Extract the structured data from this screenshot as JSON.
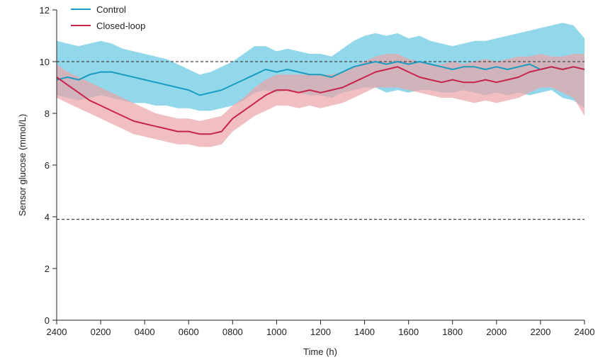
{
  "chart_data": {
    "type": "line",
    "xlabel": "Time (h)",
    "ylabel": "Sensor glucose (mmol/L)",
    "ylim": [
      0,
      12
    ],
    "xlim": [
      0,
      24
    ],
    "y_ticks": [
      0,
      2,
      4,
      6,
      8,
      10,
      12
    ],
    "x_ticks": [
      {
        "value": 0,
        "label": "2400"
      },
      {
        "value": 2,
        "label": "0200"
      },
      {
        "value": 4,
        "label": "0400"
      },
      {
        "value": 6,
        "label": "0600"
      },
      {
        "value": 8,
        "label": "0800"
      },
      {
        "value": 10,
        "label": "1000"
      },
      {
        "value": 12,
        "label": "1200"
      },
      {
        "value": 14,
        "label": "1400"
      },
      {
        "value": 16,
        "label": "1600"
      },
      {
        "value": 18,
        "label": "1800"
      },
      {
        "value": 20,
        "label": "2000"
      },
      {
        "value": 22,
        "label": "2200"
      },
      {
        "value": 24,
        "label": "2400"
      }
    ],
    "reference_lines": [
      10,
      3.9
    ],
    "grid": false,
    "legend_position": "top-left",
    "series": [
      {
        "name": "Control",
        "color": "#1a9cc0",
        "band_color": "#7fd0e6",
        "x": [
          0,
          0.5,
          1,
          1.5,
          2,
          2.5,
          3,
          3.5,
          4,
          4.5,
          5,
          5.5,
          6,
          6.5,
          7,
          7.5,
          8,
          8.5,
          9,
          9.5,
          10,
          10.5,
          11,
          11.5,
          12,
          12.5,
          13,
          13.5,
          14,
          14.5,
          15,
          15.5,
          16,
          16.5,
          17,
          17.5,
          18,
          18.5,
          19,
          19.5,
          20,
          20.5,
          21,
          21.5,
          22,
          22.5,
          23,
          23.5,
          24
        ],
        "values": [
          9.3,
          9.4,
          9.3,
          9.5,
          9.6,
          9.6,
          9.5,
          9.4,
          9.3,
          9.2,
          9.1,
          9.0,
          8.9,
          8.7,
          8.8,
          8.9,
          9.1,
          9.3,
          9.5,
          9.7,
          9.6,
          9.7,
          9.6,
          9.5,
          9.5,
          9.4,
          9.6,
          9.8,
          9.9,
          10.0,
          9.9,
          10.0,
          9.9,
          10.0,
          9.9,
          9.8,
          9.7,
          9.8,
          9.8,
          9.7,
          9.8,
          9.7,
          9.8,
          9.9,
          9.7,
          9.8,
          9.7,
          9.8,
          9.7
        ],
        "upper": [
          10.8,
          10.7,
          10.6,
          10.7,
          10.8,
          10.7,
          10.5,
          10.4,
          10.3,
          10.2,
          10.1,
          9.9,
          9.7,
          9.5,
          9.6,
          9.8,
          10.0,
          10.3,
          10.6,
          10.6,
          10.4,
          10.5,
          10.4,
          10.3,
          10.3,
          10.2,
          10.5,
          10.8,
          11.0,
          11.1,
          11.0,
          11.1,
          10.9,
          11.0,
          10.8,
          10.7,
          10.6,
          10.7,
          10.8,
          10.8,
          10.9,
          11.0,
          11.1,
          11.2,
          11.3,
          11.4,
          11.5,
          11.4,
          10.9
        ],
        "lower": [
          8.7,
          8.6,
          8.5,
          8.6,
          8.7,
          8.6,
          8.5,
          8.4,
          8.4,
          8.3,
          8.3,
          8.2,
          8.2,
          8.1,
          8.1,
          8.2,
          8.3,
          8.5,
          8.8,
          8.9,
          8.8,
          8.9,
          8.8,
          8.7,
          8.7,
          8.6,
          8.8,
          8.9,
          9.0,
          9.0,
          8.8,
          8.9,
          8.8,
          8.9,
          8.9,
          8.8,
          8.8,
          8.9,
          8.8,
          8.7,
          8.8,
          8.7,
          8.8,
          8.7,
          8.8,
          8.9,
          8.6,
          8.5,
          8.2
        ]
      },
      {
        "name": "Closed-loop",
        "color": "#c8244a",
        "band_color": "#eba4a6",
        "x": [
          0,
          0.5,
          1,
          1.5,
          2,
          2.5,
          3,
          3.5,
          4,
          4.5,
          5,
          5.5,
          6,
          6.5,
          7,
          7.5,
          8,
          8.5,
          9,
          9.5,
          10,
          10.5,
          11,
          11.5,
          12,
          12.5,
          13,
          13.5,
          14,
          14.5,
          15,
          15.5,
          16,
          16.5,
          17,
          17.5,
          18,
          18.5,
          19,
          19.5,
          20,
          20.5,
          21,
          21.5,
          22,
          22.5,
          23,
          23.5,
          24
        ],
        "values": [
          9.4,
          9.1,
          8.8,
          8.5,
          8.3,
          8.1,
          7.9,
          7.7,
          7.6,
          7.5,
          7.4,
          7.3,
          7.3,
          7.2,
          7.2,
          7.3,
          7.8,
          8.1,
          8.4,
          8.7,
          8.9,
          8.9,
          8.8,
          8.9,
          8.8,
          8.9,
          9.0,
          9.2,
          9.4,
          9.6,
          9.7,
          9.8,
          9.6,
          9.4,
          9.3,
          9.2,
          9.3,
          9.2,
          9.2,
          9.3,
          9.2,
          9.3,
          9.4,
          9.6,
          9.7,
          9.8,
          9.7,
          9.8,
          9.7
        ],
        "upper": [
          9.9,
          9.6,
          9.4,
          9.2,
          9.0,
          8.8,
          8.6,
          8.4,
          8.2,
          8.0,
          7.9,
          7.8,
          7.8,
          7.7,
          7.8,
          7.9,
          8.3,
          8.6,
          9.0,
          9.3,
          9.5,
          9.5,
          9.5,
          9.5,
          9.5,
          9.5,
          9.6,
          9.8,
          10.0,
          10.2,
          10.3,
          10.3,
          10.1,
          10.0,
          9.9,
          9.9,
          10.0,
          9.9,
          10.0,
          10.1,
          10.0,
          10.1,
          10.2,
          10.2,
          10.3,
          10.2,
          10.2,
          10.3,
          10.3
        ],
        "lower": [
          8.6,
          8.4,
          8.2,
          8.0,
          7.8,
          7.6,
          7.4,
          7.2,
          7.1,
          7.0,
          6.9,
          6.8,
          6.8,
          6.7,
          6.7,
          6.8,
          7.3,
          7.6,
          7.9,
          8.1,
          8.3,
          8.3,
          8.2,
          8.3,
          8.2,
          8.3,
          8.4,
          8.6,
          8.8,
          9.0,
          9.0,
          9.0,
          8.9,
          8.8,
          8.7,
          8.6,
          8.6,
          8.5,
          8.4,
          8.5,
          8.4,
          8.5,
          8.6,
          8.8,
          9.0,
          9.0,
          8.8,
          8.6,
          7.9
        ]
      }
    ]
  }
}
